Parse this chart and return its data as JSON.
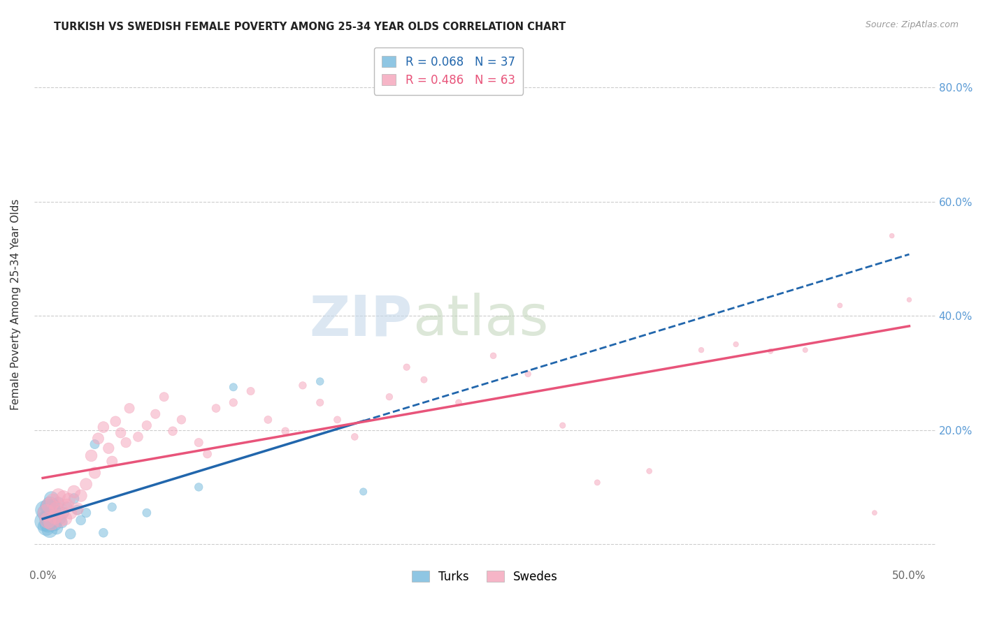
{
  "title": "TURKISH VS SWEDISH FEMALE POVERTY AMONG 25-34 YEAR OLDS CORRELATION CHART",
  "source": "Source: ZipAtlas.com",
  "ylabel": "Female Poverty Among 25-34 Year Olds",
  "xlim": [
    -0.005,
    0.515
  ],
  "ylim": [
    -0.04,
    0.88
  ],
  "xtick_positions": [
    0.0,
    0.1,
    0.2,
    0.3,
    0.4,
    0.5
  ],
  "xticklabels": [
    "0.0%",
    "",
    "",
    "",
    "",
    "50.0%"
  ],
  "ytick_positions": [
    0.0,
    0.2,
    0.4,
    0.6,
    0.8
  ],
  "yticklabels_right": [
    "",
    "20.0%",
    "40.0%",
    "60.0%",
    "80.0%"
  ],
  "turks_color": "#7bbcde",
  "swedes_color": "#f5a8be",
  "turks_line_color": "#2166ac",
  "swedes_line_color": "#e8547a",
  "turks_R": 0.068,
  "turks_N": 37,
  "swedes_R": 0.486,
  "swedes_N": 63,
  "background_color": "#ffffff",
  "turks_x": [
    0.001,
    0.001,
    0.002,
    0.002,
    0.003,
    0.003,
    0.003,
    0.004,
    0.004,
    0.004,
    0.005,
    0.005,
    0.005,
    0.006,
    0.006,
    0.007,
    0.007,
    0.008,
    0.008,
    0.009,
    0.01,
    0.011,
    0.012,
    0.014,
    0.016,
    0.018,
    0.02,
    0.022,
    0.025,
    0.03,
    0.035,
    0.04,
    0.06,
    0.09,
    0.11,
    0.16,
    0.185
  ],
  "turks_y": [
    0.04,
    0.06,
    0.03,
    0.055,
    0.035,
    0.045,
    0.065,
    0.025,
    0.05,
    0.07,
    0.038,
    0.055,
    0.08,
    0.042,
    0.068,
    0.035,
    0.058,
    0.028,
    0.048,
    0.072,
    0.045,
    0.038,
    0.055,
    0.065,
    0.018,
    0.08,
    0.06,
    0.042,
    0.055,
    0.175,
    0.02,
    0.065,
    0.055,
    0.1,
    0.275,
    0.285,
    0.092
  ],
  "turks_sizes": [
    400,
    350,
    300,
    320,
    280,
    300,
    260,
    250,
    270,
    240,
    230,
    220,
    210,
    200,
    190,
    180,
    170,
    160,
    155,
    150,
    140,
    130,
    125,
    120,
    115,
    110,
    105,
    100,
    95,
    90,
    85,
    80,
    75,
    70,
    65,
    60,
    55
  ],
  "swedes_x": [
    0.002,
    0.003,
    0.004,
    0.005,
    0.006,
    0.007,
    0.008,
    0.009,
    0.01,
    0.011,
    0.012,
    0.013,
    0.014,
    0.015,
    0.016,
    0.018,
    0.02,
    0.022,
    0.025,
    0.028,
    0.03,
    0.032,
    0.035,
    0.038,
    0.04,
    0.042,
    0.045,
    0.048,
    0.05,
    0.055,
    0.06,
    0.065,
    0.07,
    0.075,
    0.08,
    0.09,
    0.095,
    0.1,
    0.11,
    0.12,
    0.13,
    0.14,
    0.15,
    0.16,
    0.17,
    0.18,
    0.2,
    0.21,
    0.22,
    0.24,
    0.26,
    0.28,
    0.3,
    0.32,
    0.35,
    0.38,
    0.4,
    0.42,
    0.44,
    0.46,
    0.48,
    0.49,
    0.5
  ],
  "swedes_y": [
    0.055,
    0.042,
    0.068,
    0.038,
    0.075,
    0.048,
    0.062,
    0.085,
    0.042,
    0.058,
    0.082,
    0.045,
    0.068,
    0.078,
    0.055,
    0.092,
    0.062,
    0.085,
    0.105,
    0.155,
    0.125,
    0.185,
    0.205,
    0.168,
    0.145,
    0.215,
    0.195,
    0.178,
    0.238,
    0.188,
    0.208,
    0.228,
    0.258,
    0.198,
    0.218,
    0.178,
    0.158,
    0.238,
    0.248,
    0.268,
    0.218,
    0.198,
    0.278,
    0.248,
    0.218,
    0.188,
    0.258,
    0.31,
    0.288,
    0.248,
    0.33,
    0.298,
    0.208,
    0.108,
    0.128,
    0.34,
    0.35,
    0.338,
    0.34,
    0.418,
    0.055,
    0.54,
    0.428
  ],
  "swedes_sizes": [
    300,
    280,
    260,
    250,
    240,
    230,
    220,
    210,
    205,
    200,
    195,
    190,
    185,
    180,
    175,
    165,
    160,
    155,
    150,
    145,
    140,
    135,
    130,
    125,
    120,
    115,
    112,
    108,
    105,
    100,
    95,
    92,
    88,
    85,
    82,
    78,
    75,
    72,
    68,
    65,
    62,
    60,
    58,
    55,
    52,
    50,
    48,
    46,
    44,
    42,
    40,
    38,
    36,
    34,
    32,
    30,
    29,
    28,
    27,
    26,
    25,
    24,
    23
  ]
}
